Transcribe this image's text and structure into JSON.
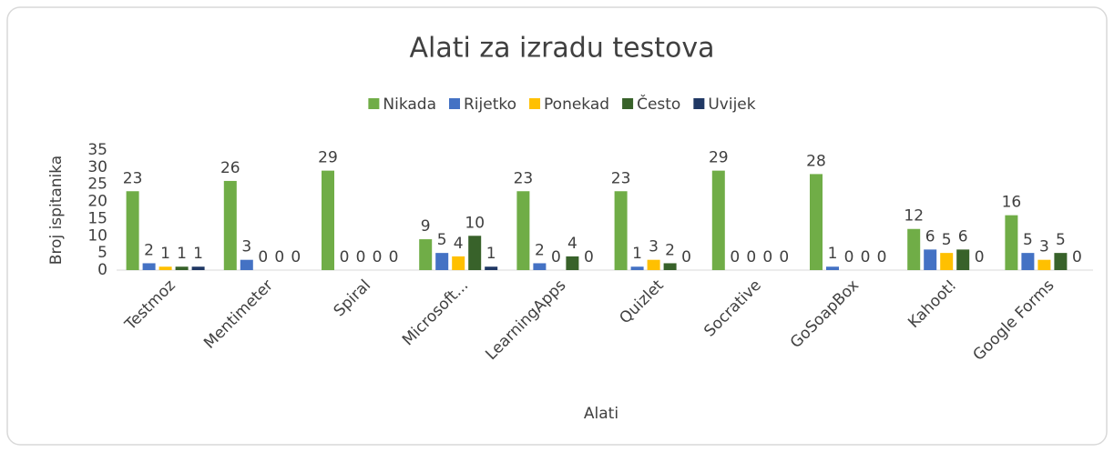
{
  "chart_data": {
    "type": "bar",
    "title": "Alati za izradu testova",
    "x_label": "Alati",
    "y_label": "Broj ispitanika",
    "categories": [
      "Testmoz",
      "Mentimeter",
      "Spiral",
      "Microsoft...",
      "LearningApps",
      "Quizlet",
      "Socrative",
      "GoSoapBox",
      "Kahoot!",
      "Google Forms"
    ],
    "series": [
      {
        "name": "Nikada",
        "color": "#70ad47",
        "values": [
          23,
          26,
          29,
          9,
          23,
          23,
          29,
          28,
          12,
          16
        ]
      },
      {
        "name": "Rijetko",
        "color": "#4472c4",
        "values": [
          2,
          3,
          0,
          5,
          2,
          1,
          0,
          1,
          6,
          5
        ]
      },
      {
        "name": "Ponekad",
        "color": "#ffc000",
        "values": [
          1,
          0,
          0,
          4,
          0,
          3,
          0,
          0,
          5,
          3
        ]
      },
      {
        "name": "Često",
        "color": "#38622a",
        "values": [
          1,
          0,
          0,
          10,
          4,
          2,
          0,
          0,
          6,
          5
        ]
      },
      {
        "name": "Uvijek",
        "color": "#203864",
        "values": [
          1,
          0,
          0,
          1,
          0,
          0,
          0,
          0,
          0,
          0
        ]
      }
    ],
    "ylim": [
      0,
      35
    ],
    "yticks": [
      0,
      5,
      10,
      15,
      20,
      25,
      30,
      35
    ],
    "legend": "top",
    "grid": false
  }
}
